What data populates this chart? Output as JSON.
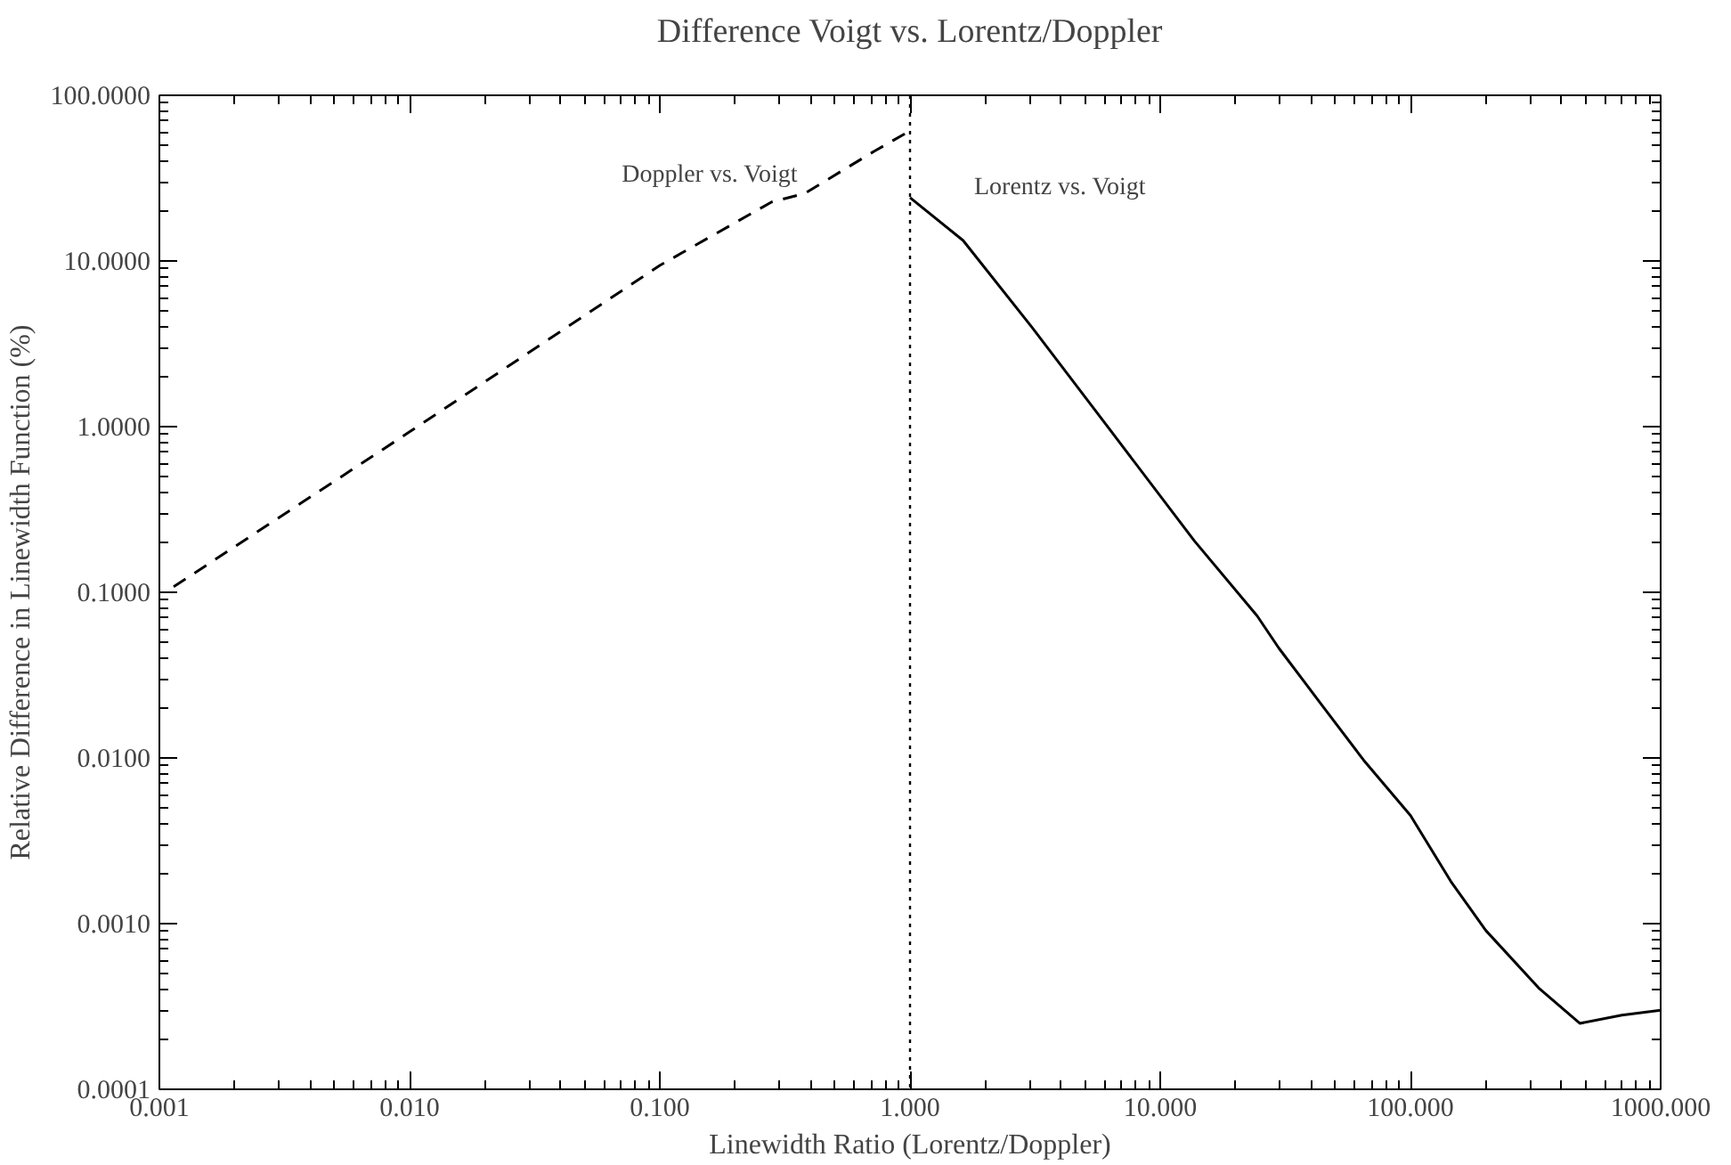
{
  "chart_data": {
    "type": "line",
    "title": "Difference Voigt vs. Lorentz/Doppler",
    "xlabel": "Linewidth Ratio (Lorentz/Doppler)",
    "ylabel": "Relative Difference in Linewidth Function (%)",
    "log": "xy",
    "grid": false,
    "legend": false,
    "xlim": [
      0.001,
      1000
    ],
    "ylim": [
      0.0001,
      100
    ],
    "xticks": [
      {
        "value": 0.001,
        "label": "0.001"
      },
      {
        "value": 0.01,
        "label": "0.010"
      },
      {
        "value": 0.1,
        "label": "0.100"
      },
      {
        "value": 1,
        "label": "1.000"
      },
      {
        "value": 10,
        "label": "10.000"
      },
      {
        "value": 100,
        "label": "100.000"
      },
      {
        "value": 1000,
        "label": "1000.000"
      }
    ],
    "yticks": [
      {
        "value": 0.0001,
        "label": "0.0001"
      },
      {
        "value": 0.001,
        "label": "0.0010"
      },
      {
        "value": 0.01,
        "label": "0.0100"
      },
      {
        "value": 0.1,
        "label": "0.1000"
      },
      {
        "value": 1,
        "label": "1.0000"
      },
      {
        "value": 10,
        "label": "10.0000"
      },
      {
        "value": 100,
        "label": "100.0000"
      }
    ],
    "series": [
      {
        "name": "Doppler vs. Voigt",
        "color": "#000000",
        "line_style": "dashed",
        "x": [
          0.00114,
          0.01,
          0.1,
          0.28,
          0.38,
          0.72,
          1.0
        ],
        "values": [
          0.108,
          0.93,
          9.4,
          22.7,
          25.6,
          46,
          61
        ]
      },
      {
        "name": "Lorentz vs. Voigt",
        "color": "#000000",
        "line_style": "solid",
        "x": [
          1.0,
          1.63,
          3.07,
          6.1,
          13.7,
          24.4,
          29.8,
          43.5,
          65,
          100,
          145,
          200,
          325,
          475,
          700,
          1000
        ],
        "values": [
          24.1,
          13.3,
          3.98,
          1.02,
          0.204,
          0.072,
          0.046,
          0.0216,
          0.0097,
          0.0045,
          0.0018,
          0.00091,
          0.00041,
          0.00025,
          0.00028,
          0.0003
        ]
      }
    ],
    "ref_lines": [
      {
        "axis": "x",
        "value": 1,
        "color": "#000000",
        "line_style": "dotted"
      }
    ]
  }
}
